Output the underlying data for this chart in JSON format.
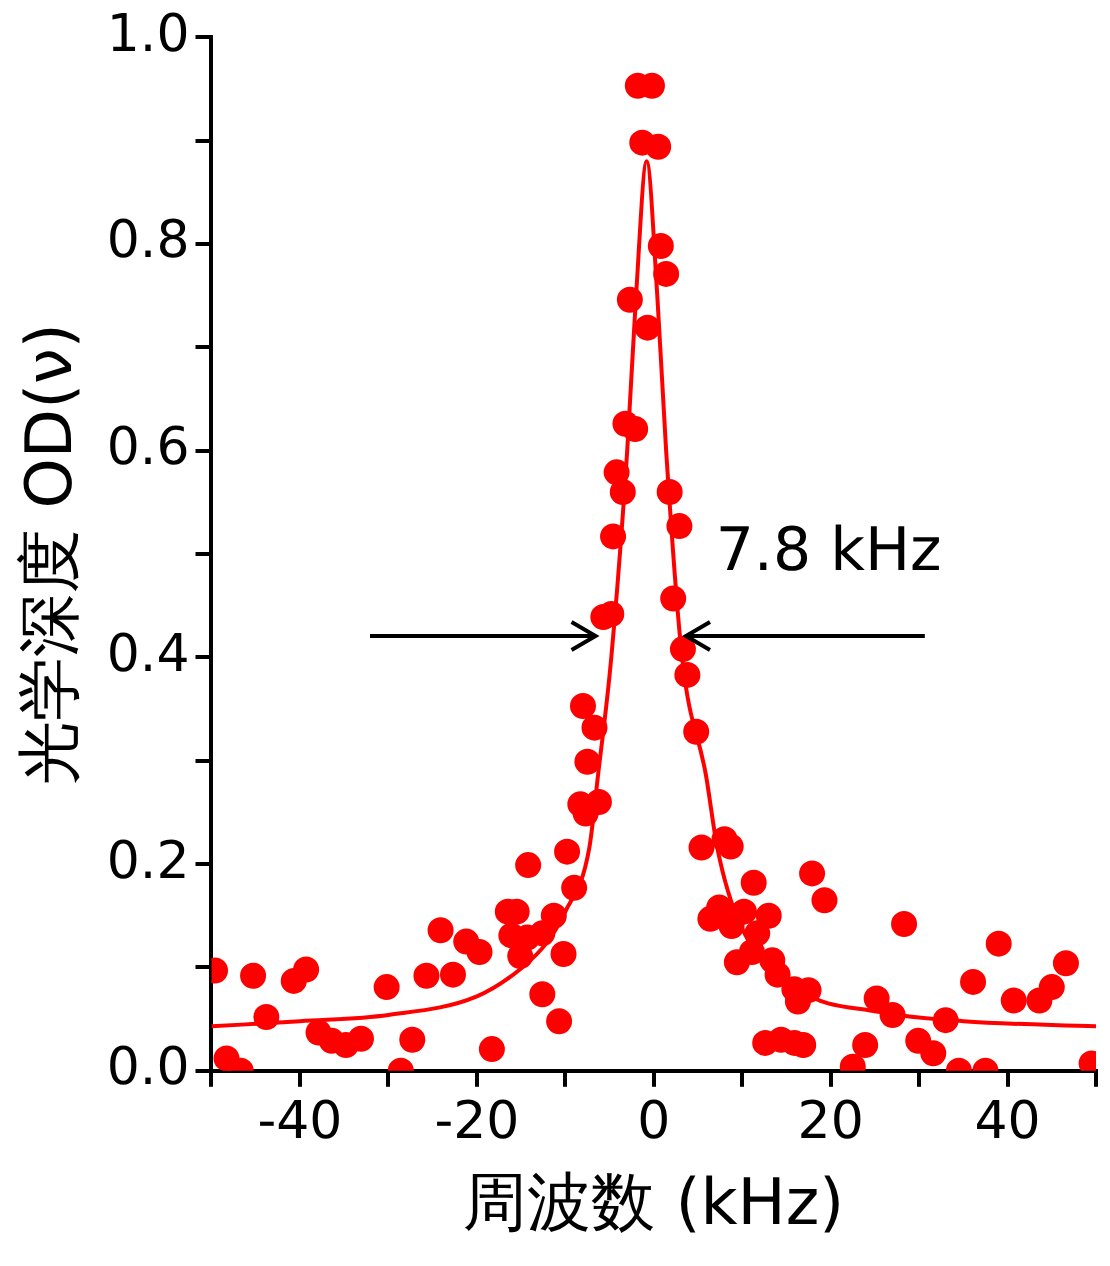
{
  "chart_data": {
    "type": "scatter",
    "xlabel": "周波数 (kHz)",
    "ylabel": "光学深度 OD(ν)",
    "annotations": [
      "7.8 kHz"
    ],
    "xlim": [
      -50,
      50
    ],
    "ylim": [
      0,
      1.0
    ],
    "xticks": [
      {
        "value": -50,
        "label": null
      },
      -40,
      {
        "value": -30,
        "label": null
      },
      -20,
      {
        "value": -10,
        "label": null
      },
      0,
      {
        "value": 10,
        "label": null
      },
      20,
      {
        "value": 30,
        "label": null
      },
      40,
      {
        "value": 50,
        "label": null
      }
    ],
    "yticks": [
      {
        "value": 0,
        "label": "0.0"
      },
      {
        "value": 0.1,
        "label": null
      },
      0.2,
      {
        "value": 0.3,
        "label": null
      },
      0.4,
      {
        "value": 0.5,
        "label": null
      },
      0.6,
      {
        "value": 0.7,
        "label": null
      },
      0.8,
      {
        "value": 0.9,
        "label": null
      },
      {
        "value": 1.0,
        "label": "1.0"
      }
    ],
    "grid": false,
    "legend": false,
    "marker": "circle",
    "series": [
      {
        "type": "scatter",
        "color": "#ff0000",
        "x": [
          -49.6,
          -48.3,
          -46.7,
          -45.3,
          -43.8,
          -40.7,
          -39.3,
          -37.9,
          -36.4,
          -34.8,
          -33.1,
          -30.2,
          -28.6,
          -27.3,
          -25.7,
          -24.1,
          -22.7,
          -21.2,
          -19.7,
          -18.3,
          -16.5,
          -15.5,
          -16.1,
          -15.1,
          -14.2,
          -14.3,
          -12.6,
          -12.6,
          -11.3,
          -10.7,
          -10.2,
          -9.0,
          -9.8,
          -7.7,
          -8.3,
          -6.2,
          -8.0,
          -6.7,
          -7.5,
          -5.7,
          -4.8,
          -4.6,
          -4.2,
          -3.5,
          -3.2,
          -2.1,
          -2.7,
          -0.7,
          -1.8,
          -0.2,
          -1.3,
          0.5,
          0.8,
          1.4,
          1.8,
          2.9,
          2.2,
          3.3,
          3.8,
          4.8,
          5.4,
          8.0,
          8.7,
          6.4,
          7.4,
          8.8,
          10.2,
          9.4,
          11.3,
          11.7,
          11.1,
          13.0,
          13.4,
          14.0,
          15.9,
          16.3,
          17.5,
          12.6,
          14.4,
          15.9,
          16.9,
          17.9,
          19.3,
          22.5,
          23.9,
          25.2,
          27.0,
          28.3,
          29.9,
          31.6,
          33.0,
          34.5,
          36.1,
          37.5,
          39.0,
          40.7,
          43.6,
          45.0,
          46.6,
          49.5
        ],
        "values": [
          0.097,
          0.012,
          0.0,
          0.092,
          0.052,
          0.087,
          0.098,
          0.037,
          0.029,
          0.025,
          0.031,
          0.081,
          0.0,
          0.03,
          0.092,
          0.136,
          0.093,
          0.125,
          0.115,
          0.021,
          0.154,
          0.154,
          0.131,
          0.111,
          0.199,
          0.129,
          0.133,
          0.074,
          0.15,
          0.048,
          0.113,
          0.177,
          0.212,
          0.249,
          0.258,
          0.26,
          0.353,
          0.332,
          0.299,
          0.439,
          0.442,
          0.517,
          0.579,
          0.56,
          0.626,
          0.621,
          0.746,
          0.719,
          0.953,
          0.953,
          0.898,
          0.894,
          0.798,
          0.771,
          0.56,
          0.527,
          0.457,
          0.408,
          0.383,
          0.328,
          0.216,
          0.224,
          0.217,
          0.147,
          0.158,
          0.14,
          0.154,
          0.105,
          0.182,
          0.133,
          0.115,
          0.15,
          0.107,
          0.093,
          0.079,
          0.067,
          0.078,
          0.027,
          0.03,
          0.027,
          0.025,
          0.191,
          0.165,
          0.004,
          0.025,
          0.07,
          0.054,
          0.142,
          0.029,
          0.017,
          0.049,
          0.0,
          0.086,
          0.0,
          0.123,
          0.068,
          0.068,
          0.081,
          0.104,
          0.007
        ]
      },
      {
        "type": "line",
        "color": "#ff0000",
        "marker": "none",
        "x": [
          -50,
          -40,
          -30,
          -20,
          -15,
          -12,
          -10,
          -7.3,
          -6.3,
          -4.8,
          -3,
          -2,
          -0.8,
          0.4,
          1.4,
          3.2,
          5.9,
          7.2,
          9.7,
          16.3,
          25.4,
          35,
          50
        ],
        "values": [
          0.043,
          0.048,
          0.054,
          0.072,
          0.099,
          0.125,
          0.154,
          0.215,
          0.286,
          0.4,
          0.6,
          0.75,
          0.88,
          0.75,
          0.6,
          0.4,
          0.286,
          0.215,
          0.143,
          0.079,
          0.057,
          0.048,
          0.043
        ]
      }
    ]
  }
}
